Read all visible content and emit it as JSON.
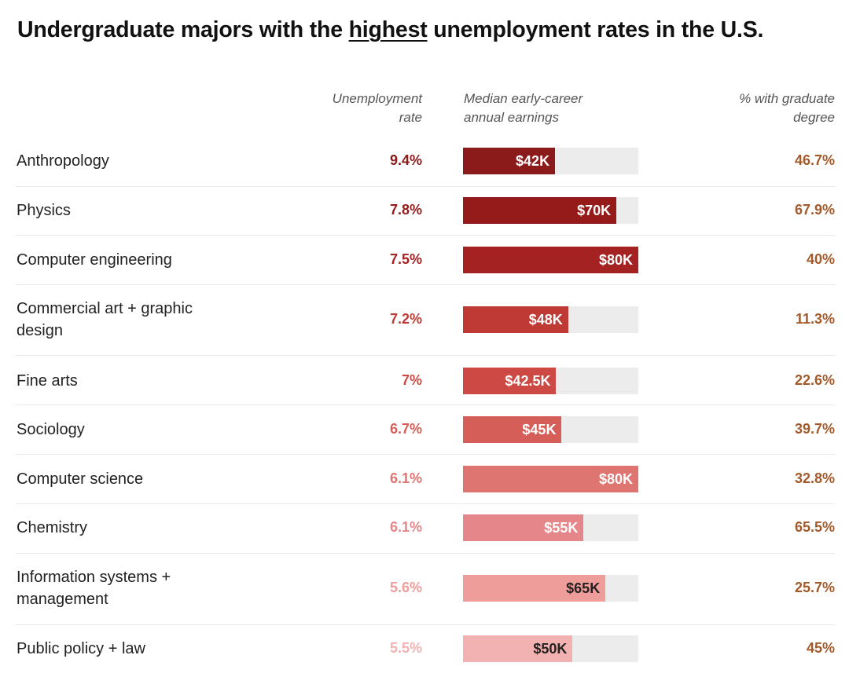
{
  "title": {
    "before": "Undergraduate majors with the ",
    "highlight": "highest",
    "after": " unemployment rates in the U.S."
  },
  "columns": {
    "rate_line1": "Unemployment",
    "rate_line2": "rate",
    "earnings_line1": "Median early-career",
    "earnings_line2": "annual earnings",
    "grad_line1": "% with graduate",
    "grad_line2": "degree"
  },
  "colors": {
    "rates": [
      "#8b1a1a",
      "#951b1b",
      "#a42222",
      "#bf3a34",
      "#cc4a43",
      "#d55f58",
      "#df7570",
      "#e5878a",
      "#ee9d9a",
      "#f2b2b2"
    ],
    "grad_text": "#a35a2a",
    "track": "#ececec"
  },
  "chart_data": {
    "type": "table",
    "earnings_scale_max": 80,
    "rows": [
      {
        "major": "Anthropology",
        "rate": "9.4%",
        "rate_value": 9.4,
        "earnings_label": "$42K",
        "earnings_k": 42,
        "grad": "46.7%",
        "grad_value": 46.7
      },
      {
        "major": "Physics",
        "rate": "7.8%",
        "rate_value": 7.8,
        "earnings_label": "$70K",
        "earnings_k": 70,
        "grad": "67.9%",
        "grad_value": 67.9
      },
      {
        "major": "Computer engineering",
        "rate": "7.5%",
        "rate_value": 7.5,
        "earnings_label": "$80K",
        "earnings_k": 80,
        "grad": "40%",
        "grad_value": 40
      },
      {
        "major": "Commercial art + graphic design",
        "rate": "7.2%",
        "rate_value": 7.2,
        "earnings_label": "$48K",
        "earnings_k": 48,
        "grad": "11.3%",
        "grad_value": 11.3
      },
      {
        "major": "Fine arts",
        "rate": "7%",
        "rate_value": 7,
        "earnings_label": "$42.5K",
        "earnings_k": 42.5,
        "grad": "22.6%",
        "grad_value": 22.6
      },
      {
        "major": "Sociology",
        "rate": "6.7%",
        "rate_value": 6.7,
        "earnings_label": "$45K",
        "earnings_k": 45,
        "grad": "39.7%",
        "grad_value": 39.7
      },
      {
        "major": "Computer science",
        "rate": "6.1%",
        "rate_value": 6.1,
        "earnings_label": "$80K",
        "earnings_k": 80,
        "grad": "32.8%",
        "grad_value": 32.8
      },
      {
        "major": "Chemistry",
        "rate": "6.1%",
        "rate_value": 6.1,
        "earnings_label": "$55K",
        "earnings_k": 55,
        "grad": "65.5%",
        "grad_value": 65.5
      },
      {
        "major": "Information systems + management",
        "rate": "5.6%",
        "rate_value": 5.6,
        "earnings_label": "$65K",
        "earnings_k": 65,
        "grad": "25.7%",
        "grad_value": 25.7
      },
      {
        "major": "Public policy + law",
        "rate": "5.5%",
        "rate_value": 5.5,
        "earnings_label": "$50K",
        "earnings_k": 50,
        "grad": "45%",
        "grad_value": 45
      }
    ]
  }
}
